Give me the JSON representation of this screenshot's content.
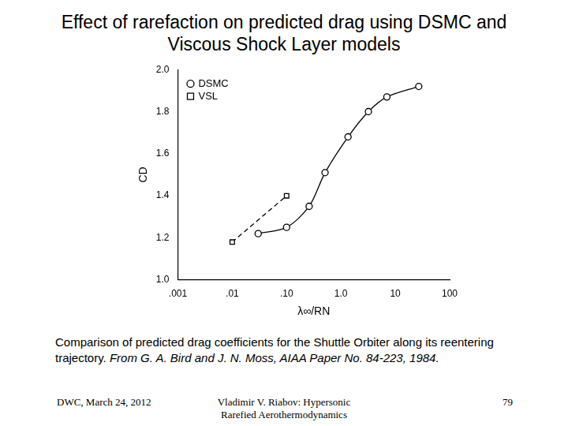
{
  "slide": {
    "title": "Effect of rarefaction on predicted drag using DSMC and Viscous Shock Layer models",
    "caption": {
      "text": "Comparison of predicted drag coefficients for the Shuttle Orbiter along its reentering trajectory.",
      "source": "From G. A. Bird and J. N. Moss, AIAA Paper No. 84-223, 1984."
    },
    "footer": {
      "left": "DWC, March 24, 2012",
      "center": [
        "Vladimir V. Riabov: Hypersonic",
        "Rarefied Aerothermodynamics"
      ],
      "right": "79"
    }
  },
  "chart_data": {
    "type": "line",
    "x_label": "λ∞/RN",
    "y_label": "CD",
    "log": "x",
    "grid": false,
    "legend": "upper left",
    "xlim": [
      0.001,
      100
    ],
    "xticks": [
      {
        "value": 0.001,
        "label": ".001"
      },
      {
        "value": 0.01,
        "label": ".01"
      },
      {
        "value": 0.1,
        "label": ".10"
      },
      {
        "value": 1,
        "label": "1.0"
      },
      10,
      100
    ],
    "ylim": [
      1.0,
      2.0
    ],
    "yticks": [
      {
        "value": 1.0,
        "label": "1.0"
      },
      1.2,
      1.4,
      1.6,
      1.8,
      {
        "value": 2.0,
        "label": "2.0"
      }
    ],
    "series": [
      {
        "name": "DSMC",
        "color": "#000000",
        "marker": "circle",
        "line_style": "solid",
        "x": [
          0.03,
          0.1,
          0.26,
          0.51,
          1.35,
          3.2,
          7,
          27
        ],
        "values": [
          1.22,
          1.25,
          1.35,
          1.51,
          1.68,
          1.8,
          1.87,
          1.92
        ]
      },
      {
        "name": "VSL",
        "color": "#000000",
        "marker": "square",
        "line_style": "dashed",
        "x": [
          0.01,
          0.1
        ],
        "values": [
          1.18,
          1.4
        ]
      }
    ]
  }
}
